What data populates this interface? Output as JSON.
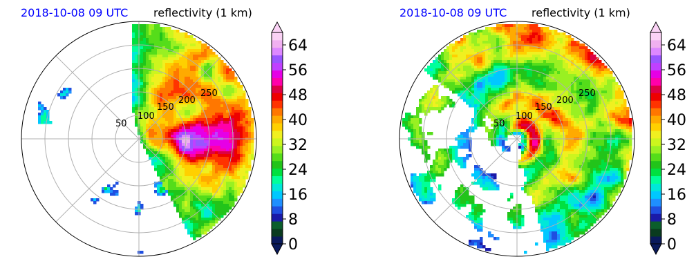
{
  "panels": [
    {
      "title_left": "2018-10-08 09 UTC",
      "title_right": "reflectivity (1 km)",
      "range_ring_labels": [
        "50",
        "100",
        "150",
        "200",
        "250"
      ]
    },
    {
      "title_left": "2018-10-08 09 UTC",
      "title_right": "reflectivity (1 km)",
      "range_ring_labels": [
        "50",
        "100",
        "150",
        "200",
        "250"
      ]
    }
  ],
  "colorbar": {
    "ticks": [
      "0",
      "8",
      "16",
      "24",
      "32",
      "40",
      "48",
      "56",
      "64"
    ],
    "vmin": 0,
    "vmax": 68,
    "extend": "both",
    "colors": [
      "#0a1a5c",
      "#0a3b1f",
      "#0b5e2c",
      "#1a1aa8",
      "#1f4fe0",
      "#1f8fff",
      "#00c8ff",
      "#00e8d8",
      "#00ff9a",
      "#00e040",
      "#22c41a",
      "#55dd1a",
      "#99f022",
      "#ccf51e",
      "#f0f020",
      "#ffd000",
      "#ffaa00",
      "#ff7700",
      "#ff3300",
      "#ee0000",
      "#dd0044",
      "#ff00aa",
      "#e600e6",
      "#c040ff",
      "#9955ff",
      "#dd88ff",
      "#f0b0f0",
      "#fad2f5"
    ]
  },
  "chart_data": [
    {
      "type": "heatmap",
      "projection": "polar radar reflectivity",
      "units": "dBZ",
      "title_left": "2018-10-08 09 UTC",
      "title_right": "reflectivity (1 km)",
      "range_rings": [
        50,
        100,
        150,
        200,
        250
      ],
      "colorbar_ticks": [
        0,
        8,
        16,
        24,
        32,
        40,
        48,
        56,
        64
      ],
      "colorbar_range": [
        0,
        68
      ]
    },
    {
      "type": "heatmap",
      "projection": "polar radar reflectivity",
      "units": "dBZ",
      "title_left": "2018-10-08 09 UTC",
      "title_right": "reflectivity (1 km)",
      "range_rings": [
        50,
        100,
        150,
        200,
        250
      ],
      "colorbar_ticks": [
        0,
        8,
        16,
        24,
        32,
        40,
        48,
        56,
        64
      ],
      "colorbar_range": [
        0,
        68
      ]
    }
  ]
}
